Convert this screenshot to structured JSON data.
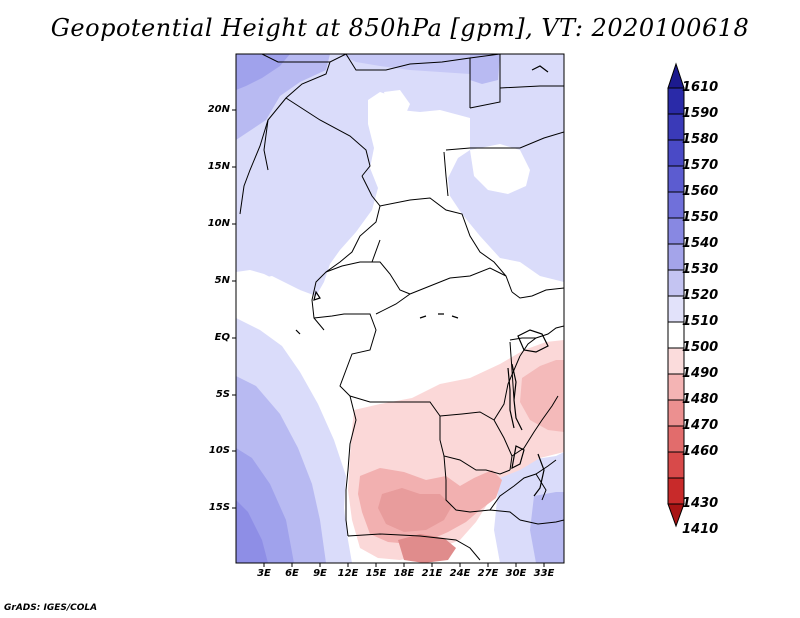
{
  "title": "Geopotential Height at 850hPa [gpm], VT: 2020100618",
  "credit": "GrADS: IGES/COLA",
  "map": {
    "variable": "Geopotential Height",
    "level": "850hPa",
    "units": "gpm",
    "valid_time": "2020100618",
    "lat_ticks": [
      "20N",
      "15N",
      "10N",
      "5N",
      "EQ",
      "5S",
      "10S",
      "15S"
    ],
    "lon_ticks": [
      "3E",
      "6E",
      "9E",
      "12E",
      "15E",
      "18E",
      "21E",
      "24E",
      "27E",
      "30E",
      "33E"
    ]
  },
  "colorbar": {
    "levels": [
      "1610",
      "1590",
      "1580",
      "1570",
      "1560",
      "1550",
      "1540",
      "1530",
      "1520",
      "1510",
      "1500",
      "1490",
      "1480",
      "1470",
      "1460",
      "1430",
      "1410"
    ],
    "colors": [
      "#1c1a8e",
      "#2a2aa8",
      "#3a3ab8",
      "#4a4ac6",
      "#5c5cd0",
      "#7070da",
      "#8888e2",
      "#a4a4ea",
      "#c4c4f2",
      "#e2e2fa",
      "#ffffff",
      "#fbdcdc",
      "#f4b4b4",
      "#ec9090",
      "#e26c6c",
      "#d84a4a",
      "#c82a2a",
      "#a81414"
    ]
  },
  "colors": {
    "blue_light": "#dadcfa",
    "blue_mid": "#b8baf2",
    "blue_deep": "#8e8ee6",
    "red_light": "#fbd8d8",
    "red_mid": "#f2b0b0",
    "red_deep": "#e08c8c"
  }
}
